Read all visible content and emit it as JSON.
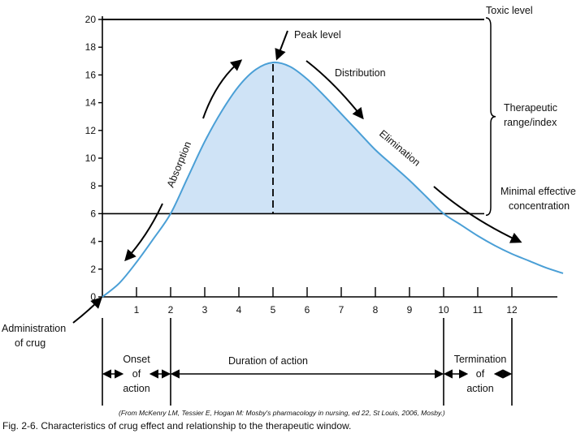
{
  "chart_data": {
    "type": "area",
    "title": "",
    "xlabel": "",
    "ylabel": "",
    "xlim": [
      0,
      13.5
    ],
    "ylim": [
      0,
      20
    ],
    "x_ticks": [
      "1",
      "2",
      "3",
      "4",
      "5",
      "6",
      "7",
      "8",
      "9",
      "10",
      "11",
      "12"
    ],
    "y_ticks": [
      "0",
      "2",
      "4",
      "6",
      "8",
      "10",
      "12",
      "14",
      "16",
      "18",
      "20"
    ],
    "series": [
      {
        "points": [
          [
            0,
            0
          ],
          [
            0.5,
            1.0
          ],
          [
            1,
            2.5
          ],
          [
            1.5,
            4.2
          ],
          [
            2,
            6.0
          ],
          [
            2.5,
            8.6
          ],
          [
            3,
            11.2
          ],
          [
            3.5,
            13.4
          ],
          [
            4,
            15.2
          ],
          [
            4.5,
            16.4
          ],
          [
            5,
            16.9
          ],
          [
            5.5,
            16.6
          ],
          [
            6,
            15.7
          ],
          [
            6.5,
            14.5
          ],
          [
            7,
            13.2
          ],
          [
            7.5,
            11.9
          ],
          [
            8,
            10.6
          ],
          [
            8.5,
            9.5
          ],
          [
            9,
            8.4
          ],
          [
            9.5,
            7.2
          ],
          [
            10,
            6.0
          ],
          [
            10.5,
            5.2
          ],
          [
            11,
            4.4
          ],
          [
            11.5,
            3.7
          ],
          [
            12,
            3.1
          ],
          [
            12.5,
            2.6
          ],
          [
            13,
            2.1
          ],
          [
            13.5,
            1.7
          ]
        ]
      }
    ],
    "levels": {
      "toxic": {
        "value": 20,
        "label": "Toxic level"
      },
      "minimal": {
        "value": 6,
        "label_line1": "Minimal effective",
        "label_line2": "concentration"
      },
      "peak": {
        "x": 5,
        "value": 16.9,
        "label": "Peak level"
      }
    },
    "therapeutic_range": {
      "from": 6,
      "to": 20,
      "label_line1": "Therapeutic",
      "label_line2": "range/index"
    },
    "phases": {
      "absorption": "Absorption",
      "distribution": "Distribution",
      "elimination": "Elimination"
    },
    "administration": {
      "line1": "Administration",
      "line2": "of crug"
    },
    "intervals": [
      {
        "name": "onset",
        "from": 0,
        "to": 2,
        "line1": "Onset",
        "line2": "of",
        "line3": "action"
      },
      {
        "name": "duration",
        "from": 2,
        "to": 10,
        "line1": "Duration of action"
      },
      {
        "name": "termination",
        "from": 10,
        "to": 12,
        "line1": "Termination",
        "line2": "of",
        "line3": "action"
      }
    ],
    "colors": {
      "curve": "#4a9fd6",
      "fill": "#cfe3f6",
      "lines": "#000000"
    }
  },
  "source": "(From McKenry LM, Tessier E, Hogan M: Mosby's pharmacology in nursing, ed 22, St Louis, 2006, Mosby.)",
  "caption": "Fig. 2-6. Characteristics of crug effect and relationship to the therapeutic window."
}
